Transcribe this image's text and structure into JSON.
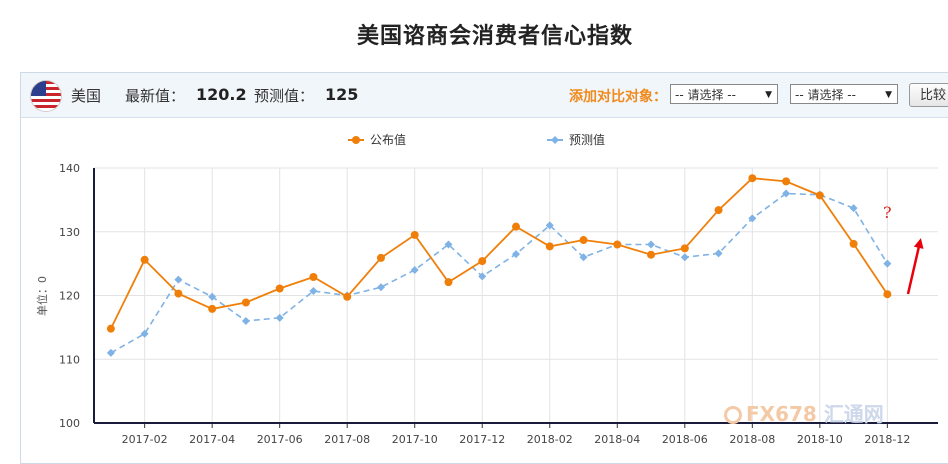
{
  "page_title": "美国谘商会消费者信心指数",
  "header": {
    "country": "美国",
    "latest_label": "最新值：",
    "latest_value": "120.2",
    "forecast_label": "预测值：",
    "forecast_value": "125",
    "add_compare_label": "添加对比对象：",
    "select1_value": "-- 请选择 --",
    "select2_value": "-- 请选择 --",
    "compare_button": "比较"
  },
  "watermark": {
    "brand": "FX678",
    "cn": "汇通网"
  },
  "annotation": {
    "question": "?"
  },
  "colors": {
    "published": "#f07f0a",
    "forecast": "#7fb2e5",
    "arrow": "#e8000b"
  },
  "chart_data": {
    "type": "line",
    "ylabel": "单位：0",
    "ylim": [
      100,
      140
    ],
    "yticks": [
      100,
      110,
      120,
      130,
      140
    ],
    "legend": [
      "公布值",
      "预测值"
    ],
    "legend_position": "top-center",
    "x": [
      "2017-01",
      "2017-02",
      "2017-03",
      "2017-04",
      "2017-05",
      "2017-06",
      "2017-07",
      "2017-08",
      "2017-09",
      "2017-10",
      "2017-11",
      "2017-12",
      "2018-01",
      "2018-02",
      "2018-03",
      "2018-04",
      "2018-05",
      "2018-06",
      "2018-07",
      "2018-08",
      "2018-09",
      "2018-10",
      "2018-11",
      "2018-12",
      "2019-01"
    ],
    "xticks": [
      "2017-02",
      "2017-04",
      "2017-06",
      "2017-08",
      "2017-10",
      "2017-12",
      "2018-02",
      "2018-04",
      "2018-06",
      "2018-08",
      "2018-10",
      "2018-12"
    ],
    "series": [
      {
        "name": "公布值",
        "values": [
          114.8,
          125.6,
          120.3,
          117.9,
          118.9,
          121.1,
          122.9,
          119.8,
          125.9,
          129.5,
          122.1,
          125.4,
          130.8,
          127.7,
          128.7,
          128.0,
          126.4,
          127.4,
          133.4,
          138.4,
          137.9,
          135.7,
          128.1,
          120.2,
          null
        ]
      },
      {
        "name": "预测值",
        "values": [
          111.0,
          114.0,
          122.5,
          119.8,
          116.0,
          116.5,
          120.7,
          120.0,
          121.3,
          124.0,
          128.0,
          123.0,
          126.5,
          131.0,
          126.0,
          128.0,
          128.0,
          126.0,
          126.6,
          132.1,
          136.0,
          135.8,
          133.7,
          125.0,
          null
        ]
      }
    ]
  }
}
